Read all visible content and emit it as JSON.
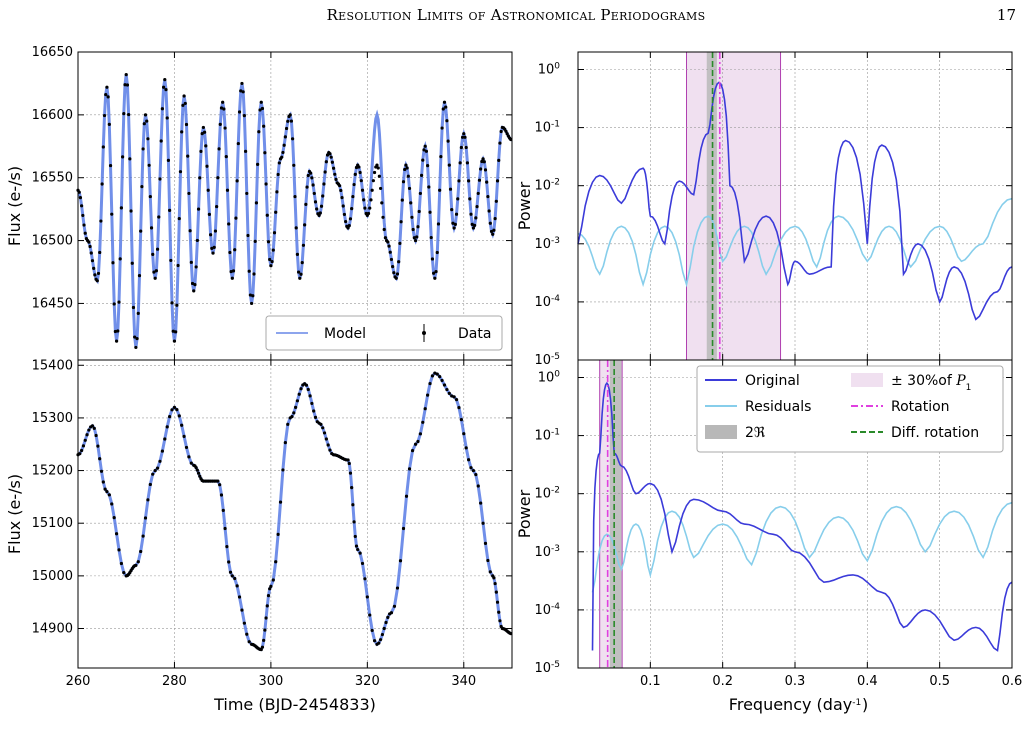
{
  "header": {
    "running_title": "Resolution Limits of Astronomical Periodograms",
    "page_number": "17"
  },
  "colors": {
    "model": "#4169e1",
    "original": "#3b3bd9",
    "residuals": "#87ceeb",
    "band_fill": "#f0e0f0",
    "band_edge": "#b040b0",
    "rotation": "#e040e0",
    "diff_rotation": "#2a8a2a",
    "resolution_fill": "#b8b8b8"
  },
  "chart_data": [
    {
      "id": "flux-top",
      "type": "line",
      "title": "",
      "xlabel": "",
      "ylabel": "Flux (e-/s)",
      "xlim": [
        260,
        350
      ],
      "ylim": [
        16405,
        16650
      ],
      "yticks": [
        16450,
        16500,
        16550,
        16600,
        16650
      ],
      "grid": true,
      "legend": "bottom-right",
      "legend_entries": [
        "Model",
        "Data"
      ],
      "series": [
        {
          "name": "Model",
          "x": [
            260,
            262,
            264,
            266,
            268,
            270,
            272,
            274,
            276,
            278,
            280,
            282,
            284,
            286,
            288,
            290,
            292,
            294,
            296,
            298,
            300,
            302,
            304,
            306,
            308,
            310,
            312,
            314,
            316,
            318,
            320,
            322,
            324,
            326,
            328,
            330,
            332,
            334,
            336,
            338,
            340,
            342,
            344,
            346,
            348,
            350
          ],
          "y": [
            16540,
            16500,
            16468,
            16622,
            16420,
            16632,
            16415,
            16600,
            16470,
            16628,
            16420,
            16615,
            16460,
            16590,
            16490,
            16610,
            16470,
            16625,
            16450,
            16610,
            16480,
            16565,
            16600,
            16470,
            16555,
            16520,
            16570,
            16545,
            16510,
            16560,
            16520,
            16600,
            16500,
            16470,
            16560,
            16500,
            16575,
            16470,
            16610,
            16510,
            16585,
            16510,
            16565,
            16505,
            16590,
            16580
          ]
        },
        {
          "name": "Data",
          "x": [
            260,
            262,
            264,
            266,
            268,
            270,
            272,
            274,
            276,
            278,
            280,
            282,
            284,
            286,
            288,
            290,
            292,
            294,
            296,
            298,
            300,
            302,
            304,
            306,
            308,
            310,
            312,
            314,
            316,
            318,
            320,
            322,
            324,
            326,
            328,
            330,
            332,
            334,
            336,
            338,
            340,
            342,
            344,
            346,
            348,
            350
          ],
          "y": [
            16540,
            16500,
            16468,
            16622,
            16420,
            16632,
            16415,
            16600,
            16470,
            16628,
            16420,
            16615,
            16460,
            16590,
            16490,
            16610,
            16470,
            16625,
            16450,
            16610,
            16480,
            16565,
            16600,
            16470,
            16555,
            16520,
            16570,
            16545,
            16510,
            16560,
            16520,
            16560,
            16500,
            16470,
            16560,
            16500,
            16575,
            16470,
            16610,
            16510,
            16585,
            16510,
            16565,
            16505,
            16590,
            16580
          ]
        }
      ]
    },
    {
      "id": "flux-bottom",
      "type": "line",
      "title": "",
      "xlabel": "Time (BJD-2454833)",
      "ylabel": "Flux (e-/s)",
      "xlim": [
        260,
        350
      ],
      "ylim": [
        14825,
        15410
      ],
      "xticks": [
        260,
        280,
        300,
        320,
        340
      ],
      "yticks": [
        14900,
        15000,
        15100,
        15200,
        15300,
        15400
      ],
      "grid": true,
      "series": [
        {
          "name": "Model",
          "x": [
            260,
            263,
            266,
            270,
            272,
            276,
            280,
            284,
            286,
            289,
            292,
            296,
            298,
            300,
            304,
            307,
            310,
            313,
            316,
            318,
            322,
            325,
            330,
            334,
            338,
            342,
            346,
            348,
            350
          ],
          "y": [
            15230,
            15285,
            15160,
            15000,
            15020,
            15200,
            15320,
            15210,
            15180,
            15180,
            15000,
            14870,
            14860,
            14980,
            15300,
            15365,
            15290,
            15230,
            15220,
            15050,
            14870,
            14930,
            15250,
            15385,
            15340,
            15200,
            15000,
            14900,
            14890
          ]
        },
        {
          "name": "Data",
          "x": [
            260,
            263,
            266,
            270,
            272,
            276,
            280,
            284,
            286,
            289,
            292,
            296,
            298,
            300,
            304,
            307,
            310,
            313,
            316,
            318,
            322,
            325,
            330,
            334,
            338,
            342,
            346,
            348,
            350
          ],
          "y": [
            15230,
            15285,
            15160,
            15000,
            15020,
            15200,
            15320,
            15210,
            15180,
            15180,
            15000,
            14870,
            14860,
            14980,
            15300,
            15365,
            15290,
            15230,
            15220,
            15050,
            14870,
            14930,
            15250,
            15385,
            15340,
            15200,
            15000,
            14900,
            14890
          ]
        }
      ]
    },
    {
      "id": "power-top",
      "type": "line",
      "log_y": true,
      "title": "",
      "xlabel": "",
      "ylabel": "Power",
      "xlim": [
        0,
        0.6
      ],
      "ylim": [
        1e-05,
        2
      ],
      "ytick_labels": [
        "10^-5",
        "10^-4",
        "10^-3",
        "10^-2",
        "10^-1",
        "10^0"
      ],
      "grid": true,
      "band": [
        0.15,
        0.28
      ],
      "resolution_band": [
        0.178,
        0.192
      ],
      "rotation": 0.196,
      "diff_rotation": 0.186,
      "series": [
        {
          "name": "Original",
          "x": [
            0,
            0.03,
            0.06,
            0.09,
            0.1,
            0.12,
            0.14,
            0.16,
            0.18,
            0.195,
            0.21,
            0.23,
            0.26,
            0.29,
            0.3,
            0.32,
            0.35,
            0.37,
            0.4,
            0.42,
            0.45,
            0.47,
            0.5,
            0.52,
            0.55,
            0.58,
            0.6
          ],
          "y": [
            0.001,
            0.015,
            0.005,
            0.02,
            0.003,
            0.001,
            0.012,
            0.007,
            0.08,
            0.6,
            0.01,
            0.0005,
            0.003,
            0.0002,
            0.0005,
            0.0003,
            0.0004,
            0.06,
            0.001,
            0.05,
            0.0003,
            0.001,
            0.0001,
            0.0004,
            5e-05,
            0.00015,
            0.0004
          ]
        },
        {
          "name": "Residuals",
          "x": [
            0,
            0.03,
            0.06,
            0.09,
            0.12,
            0.15,
            0.18,
            0.2,
            0.23,
            0.26,
            0.3,
            0.33,
            0.36,
            0.4,
            0.43,
            0.46,
            0.5,
            0.53,
            0.56,
            0.6
          ],
          "y": [
            0.0015,
            0.0003,
            0.002,
            0.0002,
            0.002,
            0.0002,
            0.003,
            0.0005,
            0.002,
            0.0003,
            0.002,
            0.0004,
            0.003,
            0.0005,
            0.002,
            0.0004,
            0.002,
            0.0005,
            0.001,
            0.006
          ]
        }
      ]
    },
    {
      "id": "power-bottom",
      "type": "line",
      "log_y": true,
      "title": "",
      "xlabel": "Frequency (day^-1)",
      "ylabel": "Power",
      "xlim": [
        0,
        0.6
      ],
      "ylim": [
        1e-05,
        2
      ],
      "xticks": [
        0.1,
        0.2,
        0.3,
        0.4,
        0.5,
        0.6
      ],
      "ytick_labels": [
        "10^-5",
        "10^-4",
        "10^-3",
        "10^-2",
        "10^-1",
        "10^0"
      ],
      "grid": true,
      "legend": "top-right",
      "band": [
        0.03,
        0.061
      ],
      "resolution_band": [
        0.044,
        0.06
      ],
      "rotation": 0.041,
      "diff_rotation": 0.05,
      "series": [
        {
          "name": "Original",
          "x": [
            0.02,
            0.03,
            0.04,
            0.05,
            0.06,
            0.08,
            0.1,
            0.13,
            0.16,
            0.2,
            0.23,
            0.27,
            0.3,
            0.34,
            0.38,
            0.42,
            0.45,
            0.48,
            0.52,
            0.55,
            0.58,
            0.6
          ],
          "y": [
            2e-05,
            0.05,
            0.8,
            0.05,
            0.03,
            0.01,
            0.015,
            0.001,
            0.008,
            0.005,
            0.003,
            0.002,
            0.001,
            0.0003,
            0.0004,
            0.0002,
            5e-05,
            0.0001,
            3e-05,
            5e-05,
            2e-05,
            0.0003
          ]
        },
        {
          "name": "Residuals",
          "x": [
            0.02,
            0.04,
            0.06,
            0.08,
            0.1,
            0.13,
            0.16,
            0.2,
            0.24,
            0.28,
            0.32,
            0.36,
            0.4,
            0.44,
            0.48,
            0.52,
            0.56,
            0.6
          ],
          "y": [
            0.0002,
            0.002,
            0.0005,
            0.003,
            0.0004,
            0.005,
            0.0008,
            0.003,
            0.0006,
            0.006,
            0.0008,
            0.004,
            0.0007,
            0.006,
            0.001,
            0.005,
            0.0008,
            0.007
          ]
        }
      ],
      "legend_entries": [
        "Original",
        "Residuals",
        "2ℜ",
        "± 30%of P1",
        "Rotation",
        "Diff. rotation"
      ]
    }
  ]
}
